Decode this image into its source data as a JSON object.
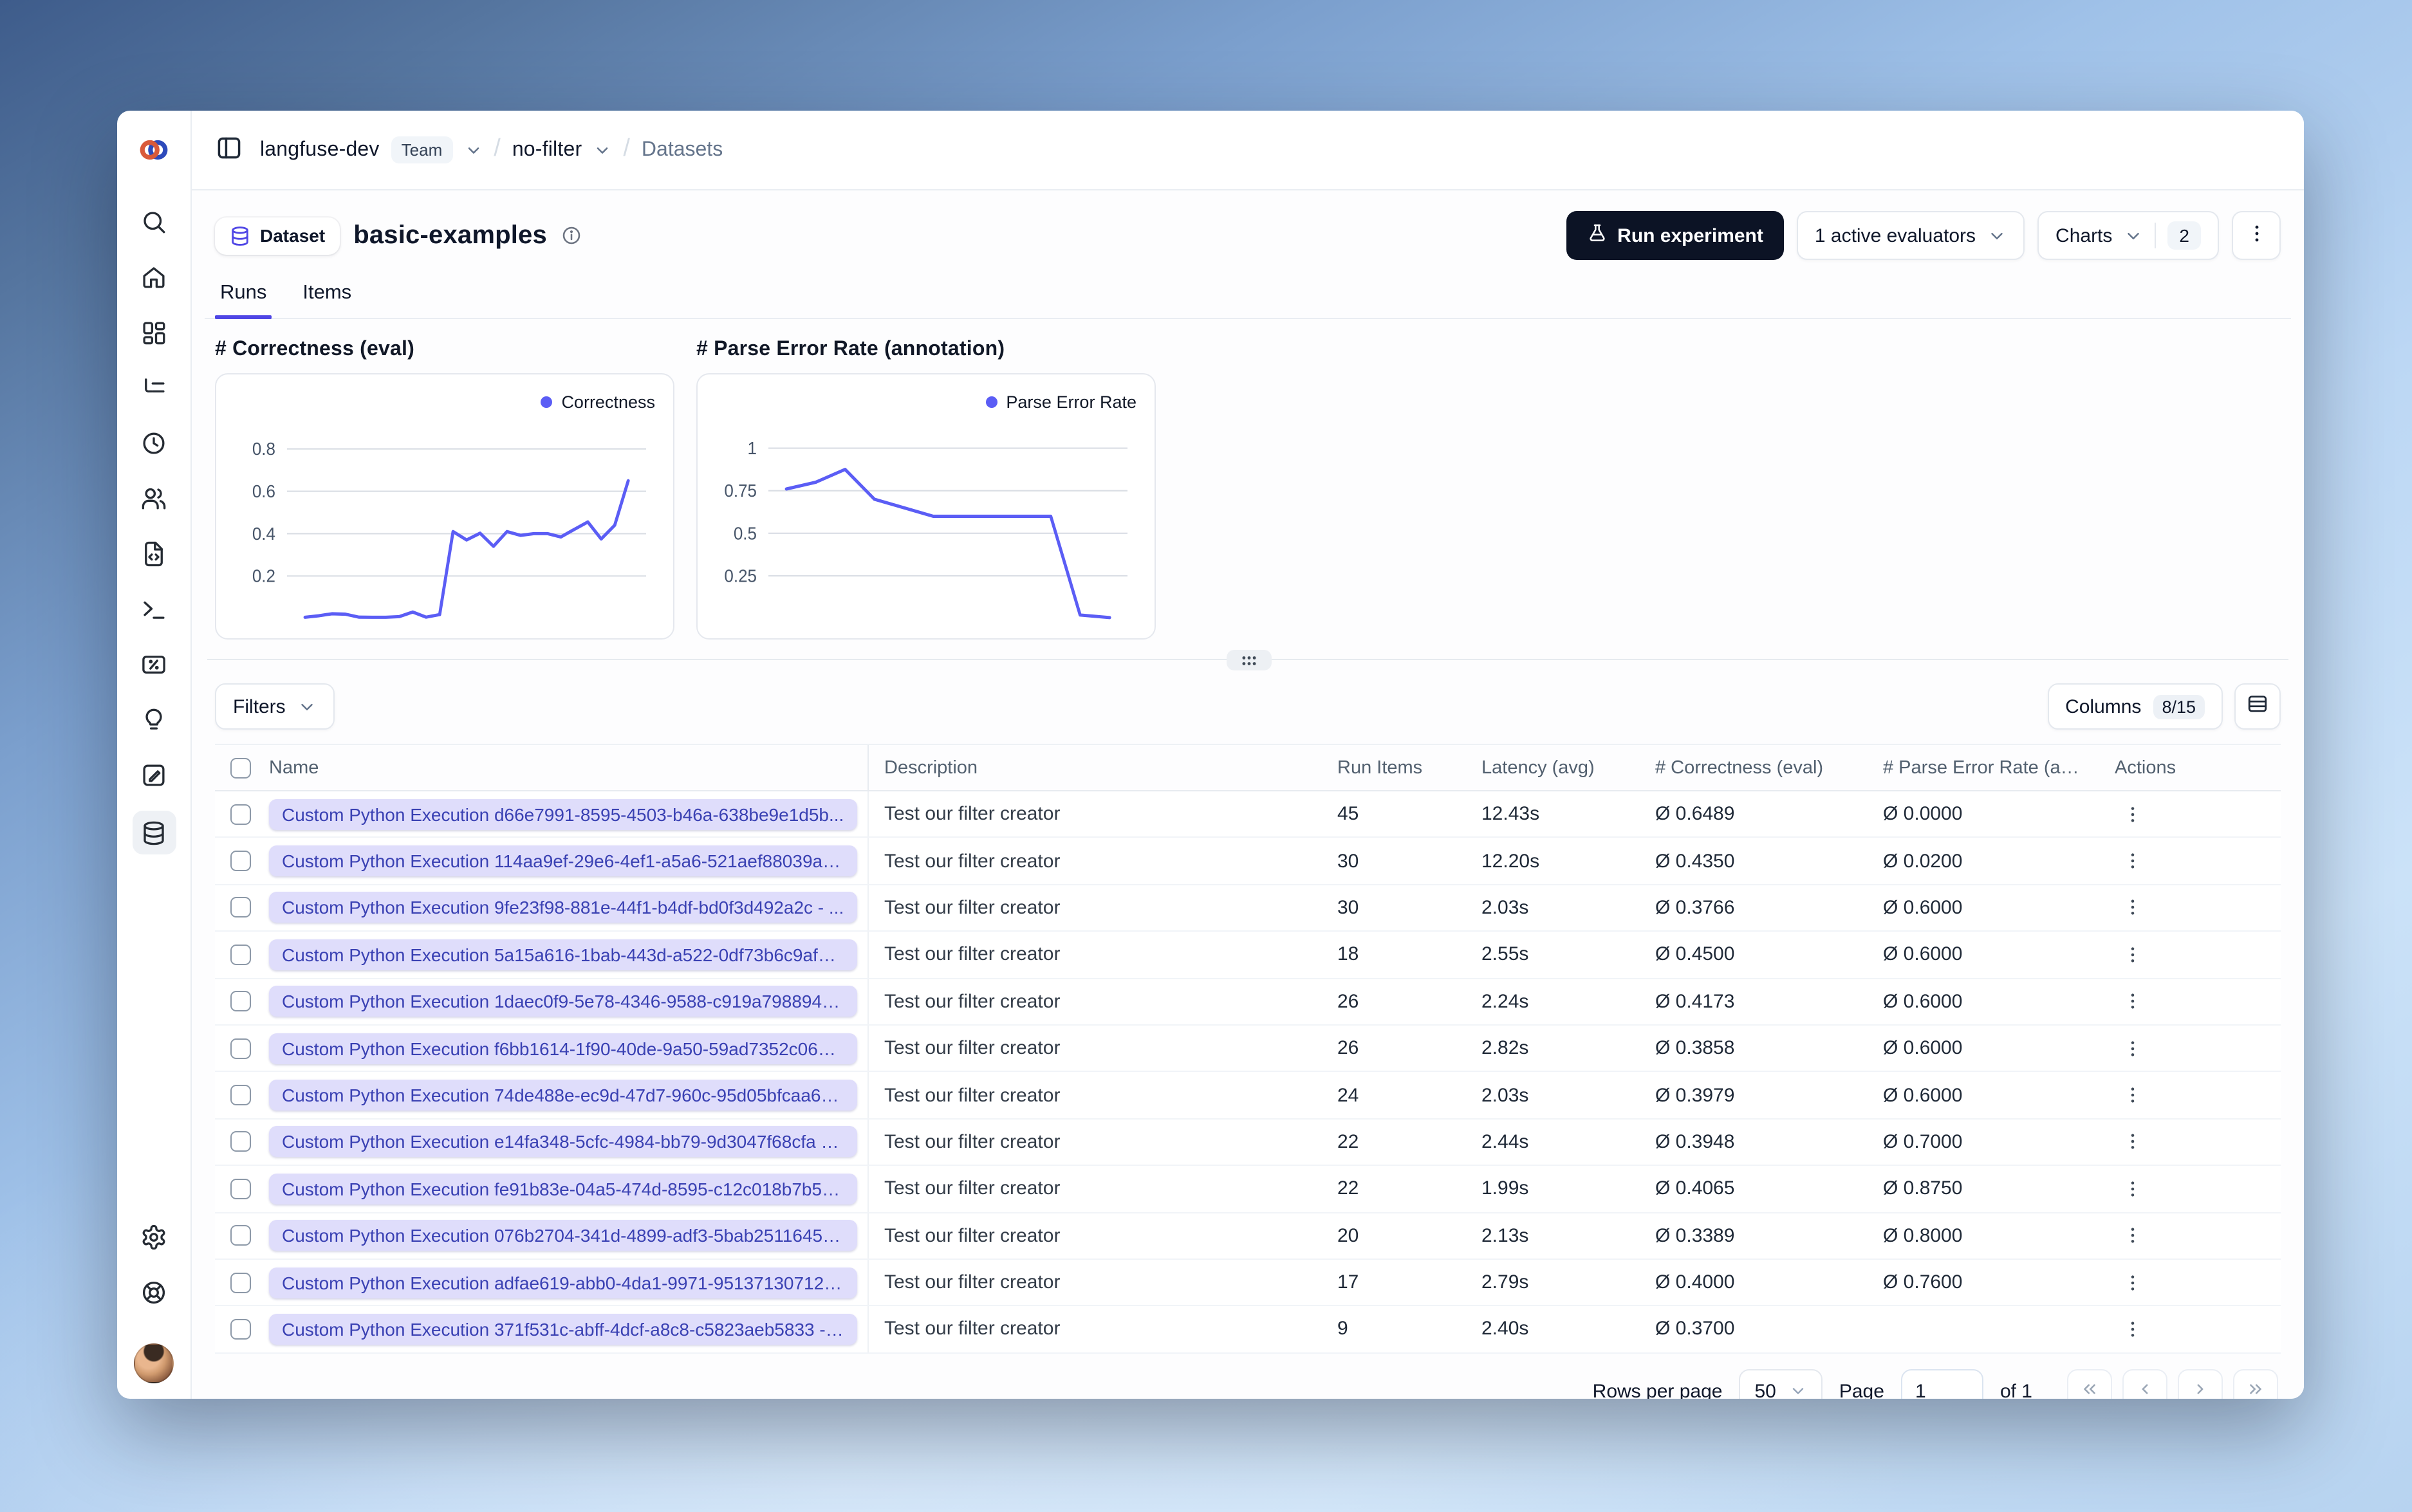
{
  "breadcrumb": {
    "org": "langfuse-dev",
    "org_badge": "Team",
    "project": "no-filter",
    "section": "Datasets"
  },
  "sidebar": {
    "items": [
      {
        "id": "search"
      },
      {
        "id": "home"
      },
      {
        "id": "dashboards"
      },
      {
        "id": "tracing"
      },
      {
        "id": "sessions"
      },
      {
        "id": "users"
      },
      {
        "id": "prompts"
      },
      {
        "id": "playground"
      },
      {
        "id": "scores"
      },
      {
        "id": "insights"
      },
      {
        "id": "annotation"
      },
      {
        "id": "datasets",
        "active": true
      }
    ],
    "bottom_items": [
      {
        "id": "settings"
      },
      {
        "id": "support"
      }
    ]
  },
  "page": {
    "type_label": "Dataset",
    "title": "basic-examples",
    "run_experiment_label": "Run experiment",
    "evaluators_label": "1 active evaluators",
    "charts_label": "Charts",
    "charts_count": "2"
  },
  "tabs": [
    {
      "label": "Runs",
      "active": true
    },
    {
      "label": "Items",
      "active": false
    }
  ],
  "chart_data": [
    {
      "type": "line",
      "title": "# Correctness (eval)",
      "legend": "Correctness",
      "color": "#5b5df5",
      "grid_color": "#d9dde4",
      "ylim": [
        0,
        0.9
      ],
      "yticks": [
        0.2,
        0.4,
        0.6,
        0.8
      ],
      "values": [
        0.005,
        0.012,
        0.022,
        0.02,
        0.006,
        0.005,
        0.005,
        0.008,
        0.03,
        0.006,
        0.018,
        0.41,
        0.37,
        0.402,
        0.34,
        0.41,
        0.392,
        0.4,
        0.4,
        0.384,
        0.42,
        0.455,
        0.375,
        0.44,
        0.65
      ]
    },
    {
      "type": "line",
      "title": "# Parse Error Rate (annotation)",
      "legend": "Parse Error Rate",
      "color": "#5b5df5",
      "grid_color": "#d9dde4",
      "ylim": [
        0,
        1.12
      ],
      "yticks": [
        0.25,
        0.5,
        0.75,
        1
      ],
      "values": [
        0.76,
        0.8,
        0.875,
        0.7,
        0.65,
        0.6,
        0.6,
        0.6,
        0.6,
        0.6,
        0.02,
        0.005
      ]
    }
  ],
  "toolbar": {
    "filters_label": "Filters",
    "columns_label": "Columns",
    "columns_badge": "8/15"
  },
  "table": {
    "columns": [
      "Name",
      "Description",
      "Run Items",
      "Latency (avg)",
      "# Correctness (eval)",
      "# Parse Error Rate (an...",
      "Actions"
    ],
    "rows": [
      {
        "name": "Custom Python Execution d66e7991-8595-4503-b46a-638be9e1d5b...",
        "description": "Test our filter creator",
        "run_items": "45",
        "latency": "12.43s",
        "correctness": "Ø 0.6489",
        "parse_error": "Ø 0.0000"
      },
      {
        "name": "Custom Python Execution 114aa9ef-29e6-4ef1-a5a6-521aef88039a - ...",
        "description": "Test our filter creator",
        "run_items": "30",
        "latency": "12.20s",
        "correctness": "Ø 0.4350",
        "parse_error": "Ø 0.0200"
      },
      {
        "name": "Custom Python Execution 9fe23f98-881e-44f1-b4df-bd0f3d492a2c - ...",
        "description": "Test our filter creator",
        "run_items": "30",
        "latency": "2.03s",
        "correctness": "Ø 0.3766",
        "parse_error": "Ø 0.6000"
      },
      {
        "name": "Custom Python Execution 5a15a616-1bab-443d-a522-0df73b6c9af9 - ...",
        "description": "Test our filter creator",
        "run_items": "18",
        "latency": "2.55s",
        "correctness": "Ø 0.4500",
        "parse_error": "Ø 0.6000"
      },
      {
        "name": "Custom Python Execution 1daec0f9-5e78-4346-9588-c919a7988948...",
        "description": "Test our filter creator",
        "run_items": "26",
        "latency": "2.24s",
        "correctness": "Ø 0.4173",
        "parse_error": "Ø 0.6000"
      },
      {
        "name": "Custom Python Execution f6bb1614-1f90-40de-9a50-59ad7352c068 ...",
        "description": "Test our filter creator",
        "run_items": "26",
        "latency": "2.82s",
        "correctness": "Ø 0.3858",
        "parse_error": "Ø 0.6000"
      },
      {
        "name": "Custom Python Execution 74de488e-ec9d-47d7-960c-95d05bfcaa6a ...",
        "description": "Test our filter creator",
        "run_items": "24",
        "latency": "2.03s",
        "correctness": "Ø 0.3979",
        "parse_error": "Ø 0.6000"
      },
      {
        "name": "Custom Python Execution e14fa348-5cfc-4984-bb79-9d3047f68cfa - ...",
        "description": "Test our filter creator",
        "run_items": "22",
        "latency": "2.44s",
        "correctness": "Ø 0.3948",
        "parse_error": "Ø 0.7000"
      },
      {
        "name": "Custom Python Execution fe91b83e-04a5-474d-8595-c12c018b7b5c ...",
        "description": "Test our filter creator",
        "run_items": "22",
        "latency": "1.99s",
        "correctness": "Ø 0.4065",
        "parse_error": "Ø 0.8750"
      },
      {
        "name": "Custom Python Execution 076b2704-341d-4899-adf3-5bab2511645e ...",
        "description": "Test our filter creator",
        "run_items": "20",
        "latency": "2.13s",
        "correctness": "Ø 0.3389",
        "parse_error": "Ø 0.8000"
      },
      {
        "name": "Custom Python Execution adfae619-abb0-4da1-9971-951371307128 - ...",
        "description": "Test our filter creator",
        "run_items": "17",
        "latency": "2.79s",
        "correctness": "Ø 0.4000",
        "parse_error": "Ø 0.7600"
      },
      {
        "name": "Custom Python Execution 371f531c-abff-4dcf-a8c8-c5823aeb5833 - ...",
        "description": "Test our filter creator",
        "run_items": "9",
        "latency": "2.40s",
        "correctness": "Ø 0.3700",
        "parse_error": ""
      }
    ]
  },
  "pagination": {
    "rows_per_page_label": "Rows per page",
    "rows_per_page_value": "50",
    "page_label": "Page",
    "page_value": "1",
    "of_label": "of 1"
  }
}
